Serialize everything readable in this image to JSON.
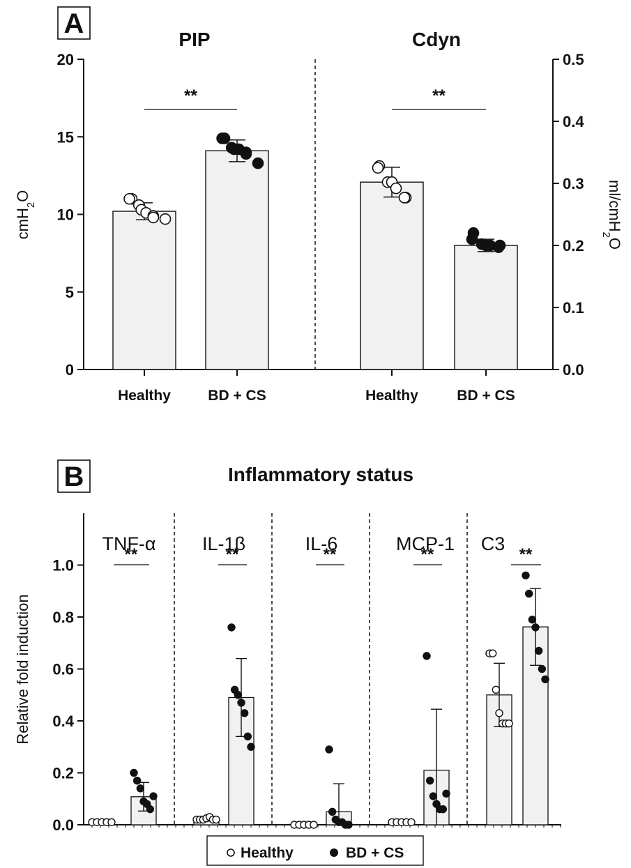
{
  "chart_data": [
    {
      "panel": "A",
      "type": "bar",
      "title": "PIP",
      "ylabel": "cmH2O",
      "ylim": [
        0,
        20
      ],
      "yticks": [
        "0",
        "5",
        "10",
        "15",
        "20"
      ],
      "categories": [
        "Healthy",
        "BD + CS"
      ],
      "values": [
        10.2,
        14.1
      ],
      "errors": [
        0.55,
        0.7
      ],
      "points": [
        [
          9.7,
          9.8,
          9.9,
          10.1,
          10.3,
          10.6,
          11.0,
          11.0
        ],
        [
          13.3,
          13.9,
          14.0,
          14.2,
          14.2,
          14.3,
          14.9,
          14.9
        ]
      ],
      "significance": "**"
    },
    {
      "panel": "A",
      "type": "bar",
      "title": "Cdyn",
      "ylabel": "ml/cmH2O",
      "ylim": [
        0,
        0.5
      ],
      "yticks": [
        "0.0",
        "0.1",
        "0.2",
        "0.3",
        "0.4",
        "0.5"
      ],
      "axis_side": "right",
      "categories": [
        "Healthy",
        "BD + CS"
      ],
      "values": [
        0.302,
        0.2
      ],
      "errors": [
        0.024,
        0.01
      ],
      "points": [
        [
          0.277,
          0.277,
          0.292,
          0.302,
          0.302,
          0.325,
          0.328
        ],
        [
          0.197,
          0.2,
          0.2,
          0.2,
          0.202,
          0.21,
          0.22
        ]
      ],
      "significance": "**"
    },
    {
      "panel": "B",
      "type": "bar",
      "title": "Inflammatory status",
      "ylabel": "Relative  fold induction",
      "ylim": [
        0,
        1.2
      ],
      "yticks": [
        "0.0",
        "0.2",
        "0.4",
        "0.6",
        "0.8",
        "1.0"
      ],
      "groups": [
        {
          "name": "TNF-α",
          "healthy": 0.01,
          "healthy_err": 0.005,
          "bdcs": 0.108,
          "bdcs_err": 0.055,
          "healthy_pts": [
            0.01,
            0.01,
            0.01,
            0.01,
            0.01
          ],
          "bdcs_pts": [
            0.2,
            0.17,
            0.14,
            0.09,
            0.08,
            0.06,
            0.11
          ]
        },
        {
          "name": "IL-1β",
          "healthy": 0.022,
          "healthy_err": 0.008,
          "bdcs": 0.49,
          "bdcs_err": 0.15,
          "healthy_pts": [
            0.02,
            0.02,
            0.02,
            0.025,
            0.03,
            0.02,
            0.02
          ],
          "bdcs_pts": [
            0.76,
            0.52,
            0.5,
            0.47,
            0.43,
            0.34,
            0.3
          ]
        },
        {
          "name": "IL-6",
          "healthy": 0.002,
          "healthy_err": 0.002,
          "bdcs": 0.05,
          "bdcs_err": 0.108,
          "healthy_pts": [
            0.0,
            0.0,
            0.0,
            0.0,
            0.0
          ],
          "bdcs_pts": [
            0.29,
            0.05,
            0.02,
            0.01,
            0.01,
            0.0,
            0.0
          ]
        },
        {
          "name": "MCP-1",
          "healthy": 0.01,
          "healthy_err": 0.005,
          "bdcs": 0.21,
          "bdcs_err": 0.235,
          "healthy_pts": [
            0.01,
            0.01,
            0.01,
            0.01,
            0.01
          ],
          "bdcs_pts": [
            0.65,
            0.17,
            0.11,
            0.08,
            0.06,
            0.06,
            0.12
          ]
        },
        {
          "name": "C3",
          "healthy": 0.5,
          "healthy_err": 0.122,
          "bdcs": 0.762,
          "bdcs_err": 0.148,
          "healthy_pts": [
            0.66,
            0.66,
            0.52,
            0.43,
            0.39,
            0.39,
            0.39
          ],
          "bdcs_pts": [
            0.96,
            0.89,
            0.79,
            0.76,
            0.67,
            0.6,
            0.56
          ]
        }
      ],
      "significance": "**",
      "legend": [
        {
          "label": "Healthy",
          "marker": "open-circle"
        },
        {
          "label": "BD + CS",
          "marker": "filled-circle"
        }
      ],
      "legend_position": "bottom-center"
    }
  ],
  "panel_labels": [
    "A",
    "B"
  ],
  "colors": {
    "bar_fill": "#f0f1f0",
    "stroke": "#111111"
  }
}
